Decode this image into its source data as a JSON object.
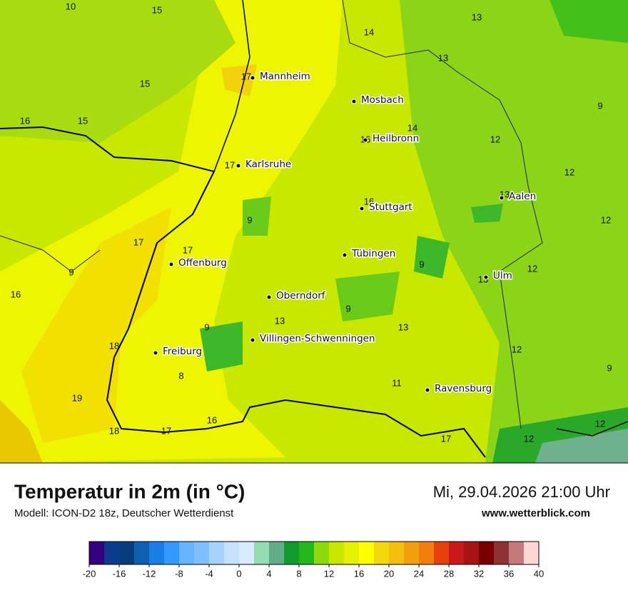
{
  "title": "Temperatur in 2m (in °C)",
  "model": "Modell: ICON-D2 18z, Deutscher Wetterdienst",
  "datetime": "Mi, 29.04.2026 21:00 Uhr",
  "website": "www.wetterblick.com",
  "map": {
    "cities": [
      "Mannheim",
      "Mosbach",
      "Heilbronn",
      "Karlsruhe",
      "Aalen",
      "Stuttgart",
      "Tübingen",
      "Ulm",
      "Offenburg",
      "Oberndorf",
      "Villingen-Schwenningen",
      "Freiburg",
      "Ravensburg"
    ],
    "values": [
      10,
      15,
      14,
      13,
      13,
      17,
      15,
      9,
      16,
      15,
      14,
      16,
      12,
      17,
      12,
      16,
      13,
      9,
      12,
      17,
      17,
      9,
      9,
      12,
      13,
      16,
      9,
      13,
      13,
      9,
      18,
      12,
      9,
      8,
      11,
      19,
      16,
      12,
      18,
      17,
      17,
      12
    ]
  },
  "colorbar": {
    "ticks": [
      -20,
      -16,
      -12,
      -8,
      -4,
      0,
      4,
      8,
      12,
      16,
      20,
      24,
      28,
      32,
      36,
      40
    ],
    "lim": [
      -20,
      40
    ],
    "colors": [
      "#33007f",
      "#0b3b8c",
      "#063e7c",
      "#0d5fb0",
      "#1a7ee6",
      "#3399ff",
      "#66b3ff",
      "#80bfff",
      "#a6d2ff",
      "#c4e1ff",
      "#d9ecff",
      "#95dcb4",
      "#5fae88",
      "#129c2d",
      "#26b81a",
      "#8cd90d",
      "#c7e600",
      "#e6f200",
      "#ffff00",
      "#f2d80d",
      "#f2bf0d",
      "#f29f0d",
      "#f27f0d",
      "#e6400d",
      "#c81a1a",
      "#a61414",
      "#7a0000",
      "#8c3333",
      "#c47a7a",
      "#ffd6d6"
    ]
  }
}
